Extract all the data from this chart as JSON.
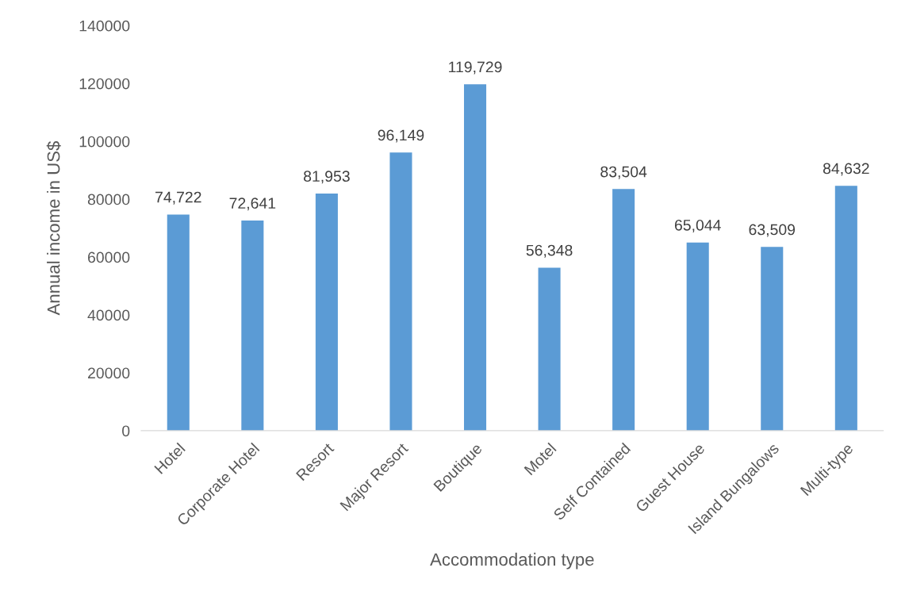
{
  "chart_data": {
    "type": "bar",
    "xlabel": "Accommodation type",
    "ylabel": "Annual income in US$",
    "categories": [
      "Hotel",
      "Corporate Hotel",
      "Resort",
      "Major Resort",
      "Boutique",
      "Motel",
      "Self Contained",
      "Guest House",
      "Island Bungalows",
      "Multi-type"
    ],
    "values": [
      74722,
      72641,
      81953,
      96149,
      119729,
      56348,
      83504,
      65044,
      63509,
      84632
    ],
    "value_labels": [
      "74,722",
      "72,641",
      "81,953",
      "96,149",
      "119,729",
      "56,348",
      "83,504",
      "65,044",
      "63,509",
      "84,632"
    ],
    "color": "#5b9bd5",
    "ylim": [
      0,
      140000
    ],
    "yticks": [
      0,
      20000,
      40000,
      60000,
      80000,
      100000,
      120000,
      140000
    ],
    "grid": false,
    "legend": false
  }
}
